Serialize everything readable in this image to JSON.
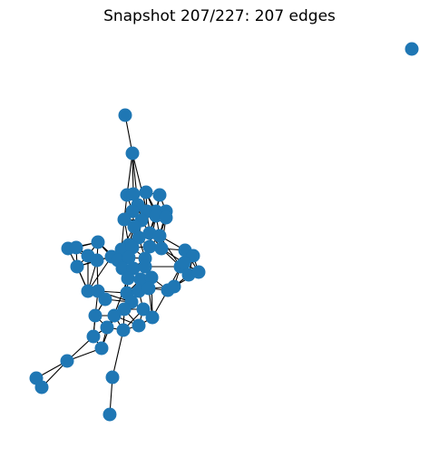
{
  "title": "Snapshot 207/227: 207 edges",
  "node_color": "#1f77b4",
  "edge_color": "#000000",
  "background": "#ffffff",
  "graph": {
    "node_count": 64,
    "edge_count": 207
  }
}
